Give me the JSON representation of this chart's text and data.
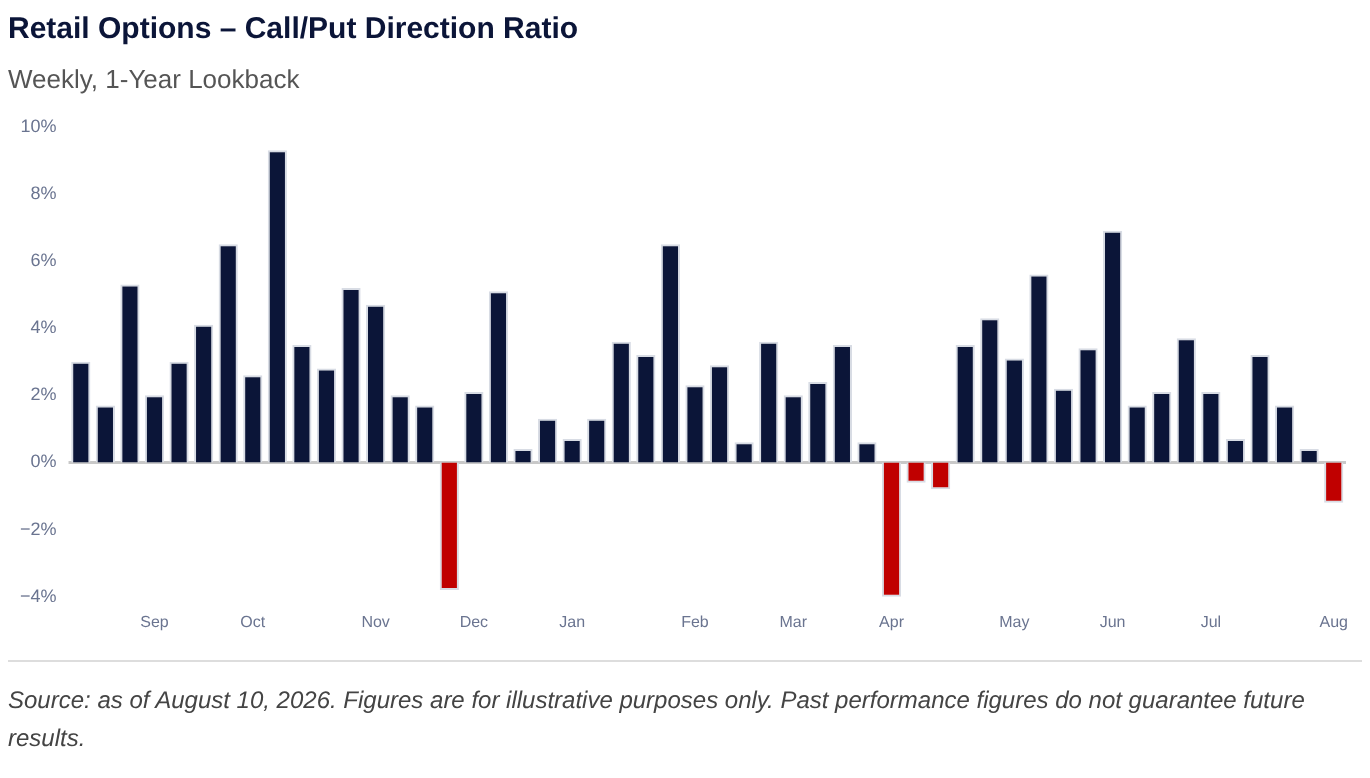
{
  "chart_data": {
    "type": "bar",
    "title": "Retail Options – Call/Put Direction Ratio",
    "subtitle": "Weekly, 1-Year Lookback",
    "categories": [
      null,
      null,
      null,
      "Sep",
      null,
      null,
      null,
      "Oct",
      null,
      null,
      null,
      null,
      "Nov",
      null,
      null,
      null,
      "Dec",
      null,
      null,
      null,
      "Jan",
      null,
      null,
      null,
      null,
      "Feb",
      null,
      null,
      null,
      "Mar",
      null,
      null,
      null,
      "Apr",
      null,
      null,
      null,
      null,
      "May",
      null,
      null,
      null,
      "Jun",
      null,
      null,
      null,
      "Jul",
      null,
      null,
      null,
      null,
      "Aug"
    ],
    "values": [
      3.0,
      1.7,
      5.3,
      2.0,
      3.0,
      4.1,
      6.5,
      2.6,
      9.3,
      3.5,
      2.8,
      5.2,
      4.7,
      2.0,
      1.7,
      -3.8,
      2.1,
      5.1,
      0.4,
      1.3,
      0.7,
      1.3,
      3.6,
      3.2,
      6.5,
      2.3,
      2.9,
      0.6,
      3.6,
      2.0,
      2.4,
      3.5,
      0.6,
      -4.0,
      -0.6,
      -0.8,
      3.5,
      4.3,
      3.1,
      5.6,
      2.2,
      3.4,
      6.9,
      1.7,
      2.1,
      3.7,
      2.1,
      0.7,
      3.2,
      1.7,
      0.4,
      -1.2
    ],
    "colors": [
      "#0b1538",
      "#0b1538",
      "#0b1538",
      "#0b1538",
      "#0b1538",
      "#0b1538",
      "#0b1538",
      "#0b1538",
      "#0b1538",
      "#0b1538",
      "#0b1538",
      "#0b1538",
      "#0b1538",
      "#0b1538",
      "#0b1538",
      "#c00000",
      "#0b1538",
      "#0b1538",
      "#0b1538",
      "#0b1538",
      "#0b1538",
      "#0b1538",
      "#0b1538",
      "#0b1538",
      "#0b1538",
      "#0b1538",
      "#0b1538",
      "#0b1538",
      "#0b1538",
      "#0b1538",
      "#0b1538",
      "#0b1538",
      "#0b1538",
      "#c00000",
      "#c00000",
      "#c00000",
      "#0b1538",
      "#0b1538",
      "#0b1538",
      "#0b1538",
      "#0b1538",
      "#0b1538",
      "#0b1538",
      "#0b1538",
      "#0b1538",
      "#0b1538",
      "#0b1538",
      "#0b1538",
      "#0b1538",
      "#0b1538",
      "#0b1538",
      "#c00000"
    ],
    "ylim": [
      -4,
      10
    ],
    "yticks": [
      {
        "value": -4,
        "label": "−4%"
      },
      {
        "value": -2,
        "label": "−2%"
      },
      {
        "value": 0,
        "label": "0%"
      },
      {
        "value": 2,
        "label": "2%"
      },
      {
        "value": 4,
        "label": "4%"
      },
      {
        "value": 6,
        "label": "6%"
      },
      {
        "value": 8,
        "label": "8%"
      },
      {
        "value": 10,
        "label": "10%"
      }
    ],
    "grid": false,
    "ref_lines": [
      {
        "axis": "y",
        "value": 0,
        "color": "#c8c8c8"
      }
    ],
    "annotations": [
      "Source: as of August 10, 2026. Figures are for illustrative purposes only. Past performance figures do not guarantee future results."
    ]
  }
}
